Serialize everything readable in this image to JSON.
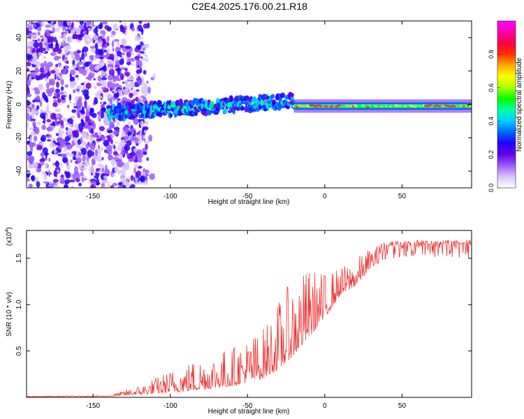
{
  "title": "C2E4.2025.176.00.21.R18",
  "chart_data": [
    {
      "type": "heatmap",
      "xlabel": "Height of straight line (km)",
      "ylabel": "Frequency (Hz)",
      "xlim": [
        -193,
        95
      ],
      "ylim": [
        -50,
        50
      ],
      "x_ticks": [
        -150,
        -100,
        -50,
        0,
        50
      ],
      "y_ticks": [
        -40,
        -20,
        0,
        20,
        40
      ],
      "colorbar": {
        "label": "Normalized spectral amplitude",
        "range": [
          0,
          1
        ],
        "ticks": [
          0.0,
          0.2,
          0.4,
          0.6,
          0.8
        ],
        "colors": [
          "#ffffff",
          "#d9c3ff",
          "#9b5cff",
          "#6a00e8",
          "#2200ff",
          "#0066ff",
          "#00ccff",
          "#00ffaa",
          "#00ff00",
          "#aaff00",
          "#ffff00",
          "#ffaa00",
          "#ff3300",
          "#ff0044",
          "#ff00aa",
          "#ff00ff"
        ]
      },
      "regions": [
        {
          "name": "scattered noise",
          "x_range": [
            -193,
            -140
          ],
          "f_range": [
            -50,
            50
          ],
          "amplitude": 0.15
        },
        {
          "name": "signal band",
          "x_range": [
            -140,
            -20
          ],
          "f_center_start": -5,
          "f_center_end": 2,
          "width": 8,
          "amplitude": 0.35
        },
        {
          "name": "strong signal",
          "x_range": [
            -20,
            95
          ],
          "f_center": -1,
          "width": 5,
          "amplitude": 0.75
        }
      ]
    },
    {
      "type": "line",
      "xlabel": "Height of straight line (km)",
      "ylabel": "SNR (10 * v/v)",
      "y_multiplier": "(x10",
      "y_multiplier_exp": "4",
      "xlim": [
        -193,
        95
      ],
      "ylim": [
        0,
        1.8
      ],
      "x_ticks": [
        -150,
        -100,
        -50,
        0,
        50
      ],
      "y_ticks": [
        0.5,
        1.0,
        1.5
      ],
      "y_tick_labels": [
        "0.5",
        "1.0",
        "1.5"
      ],
      "series": [
        {
          "color": "#ee3333",
          "envelope": [
            {
              "x": -193,
              "base": 0.005,
              "peak": 0.015
            },
            {
              "x": -140,
              "base": 0.01,
              "peak": 0.02
            },
            {
              "x": -120,
              "base": 0.03,
              "peak": 0.13
            },
            {
              "x": -100,
              "base": 0.05,
              "peak": 0.3
            },
            {
              "x": -80,
              "base": 0.08,
              "peak": 0.45
            },
            {
              "x": -60,
              "base": 0.12,
              "peak": 0.55
            },
            {
              "x": -40,
              "base": 0.2,
              "peak": 0.75
            },
            {
              "x": -30,
              "base": 0.3,
              "peak": 1.05
            },
            {
              "x": -20,
              "base": 0.45,
              "peak": 1.3
            },
            {
              "x": -10,
              "base": 0.65,
              "peak": 1.4
            },
            {
              "x": 0,
              "base": 0.85,
              "peak": 1.35
            },
            {
              "x": 10,
              "base": 1.1,
              "peak": 1.4
            },
            {
              "x": 20,
              "base": 1.2,
              "peak": 1.5
            },
            {
              "x": 30,
              "base": 1.4,
              "peak": 1.62
            },
            {
              "x": 40,
              "base": 1.5,
              "peak": 1.68
            },
            {
              "x": 60,
              "base": 1.5,
              "peak": 1.7
            },
            {
              "x": 95,
              "base": 1.5,
              "peak": 1.7
            }
          ]
        }
      ]
    }
  ]
}
